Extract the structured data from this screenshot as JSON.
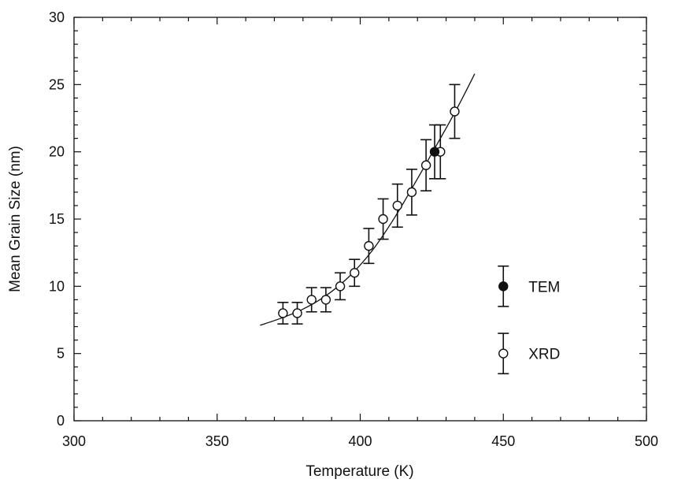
{
  "chart_data": {
    "type": "scatter",
    "title": "",
    "xlabel": "Temperature (K)",
    "ylabel": "Mean Grain Size (nm)",
    "xlim": [
      300,
      500
    ],
    "ylim": [
      0,
      30
    ],
    "x_major_ticks": [
      300,
      350,
      400,
      450,
      500
    ],
    "x_minor_step": 10,
    "y_major_ticks": [
      0,
      5,
      10,
      15,
      20,
      25,
      30
    ],
    "y_minor_step": 1,
    "x_tick_labels": [
      "300",
      "350",
      "400",
      "450",
      "500"
    ],
    "y_tick_labels": [
      "0",
      "5",
      "10",
      "15",
      "20",
      "25",
      "30"
    ],
    "grid": false,
    "legend_position": "right",
    "series": [
      {
        "name": "TEM",
        "marker": "filled-circle",
        "points": [
          {
            "x": 426,
            "y": 20,
            "err": 2
          }
        ]
      },
      {
        "name": "XRD",
        "marker": "open-circle",
        "points": [
          {
            "x": 373,
            "y": 8,
            "err": 0.8
          },
          {
            "x": 378,
            "y": 8,
            "err": 0.8
          },
          {
            "x": 383,
            "y": 9,
            "err": 0.9
          },
          {
            "x": 388,
            "y": 9,
            "err": 0.9
          },
          {
            "x": 393,
            "y": 10,
            "err": 1.0
          },
          {
            "x": 398,
            "y": 11,
            "err": 1.0
          },
          {
            "x": 403,
            "y": 13,
            "err": 1.3
          },
          {
            "x": 408,
            "y": 15,
            "err": 1.5
          },
          {
            "x": 413,
            "y": 16,
            "err": 1.6
          },
          {
            "x": 418,
            "y": 17,
            "err": 1.7
          },
          {
            "x": 423,
            "y": 19,
            "err": 1.9
          },
          {
            "x": 428,
            "y": 20,
            "err": 2.0
          },
          {
            "x": 433,
            "y": 23,
            "err": 2.0
          }
        ]
      }
    ],
    "fit_curve": {
      "x": [
        365,
        372,
        380,
        388,
        396,
        404,
        412,
        420,
        428,
        434,
        440
      ],
      "y": [
        7.1,
        7.6,
        8.3,
        9.3,
        10.7,
        12.6,
        15.1,
        18.0,
        21.0,
        23.3,
        25.8
      ]
    },
    "legend_items": [
      {
        "name": "TEM",
        "marker": "filled-circle",
        "label": "TEM"
      },
      {
        "name": "XRD",
        "marker": "open-circle",
        "label": "XRD"
      }
    ]
  }
}
